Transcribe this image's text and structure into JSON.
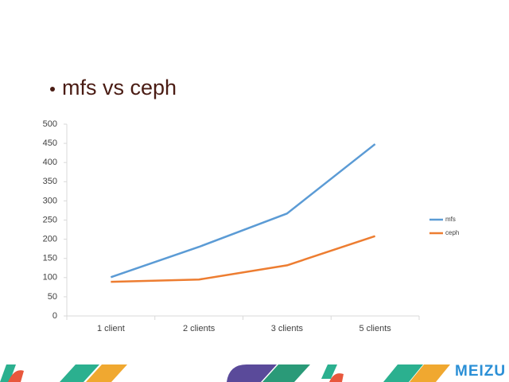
{
  "chart_data": {
    "type": "line",
    "title": "mfs vs ceph",
    "categories": [
      "1 client",
      "2 clients",
      "3 clients",
      "5 clients"
    ],
    "series": [
      {
        "name": "mfs",
        "color": "#5b9bd5",
        "values": [
          101,
          180,
          267,
          448
        ]
      },
      {
        "name": "ceph",
        "color": "#ed7d31",
        "values": [
          89,
          95,
          132,
          208
        ]
      }
    ],
    "ylim": [
      0,
      500
    ],
    "yticks": [
      0,
      50,
      100,
      150,
      200,
      250,
      300,
      350,
      400,
      450,
      500
    ],
    "grid": false,
    "legend": "right"
  },
  "footer": {
    "logo": "MEIZU"
  }
}
